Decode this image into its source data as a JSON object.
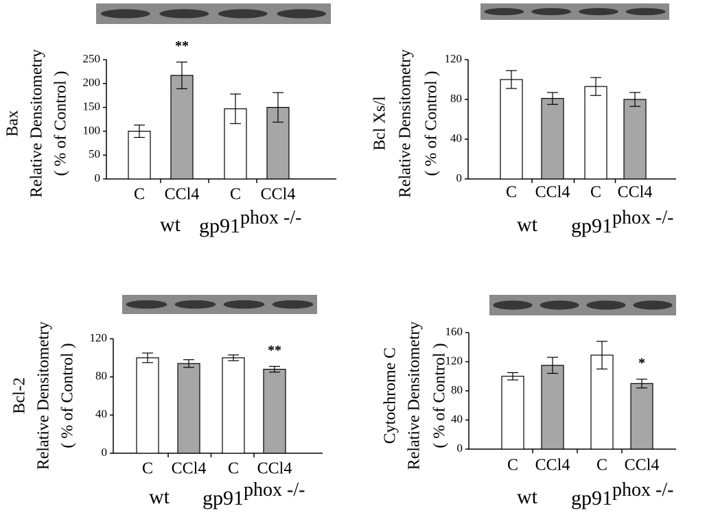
{
  "chart_data": [
    {
      "type": "bar",
      "ylabel": [
        "Bax",
        "Relative Densitometry",
        "( % of Control )"
      ],
      "categories": [
        "C",
        "CCl4",
        "C",
        "CCl4"
      ],
      "values": [
        100,
        217,
        147,
        150
      ],
      "errors": [
        13,
        28,
        31,
        31
      ],
      "colors": [
        "#ffffff",
        "#a6a6a6",
        "#ffffff",
        "#a6a6a6"
      ],
      "significance": [
        null,
        "**",
        null,
        null
      ],
      "group_labels": [
        "wt",
        {
          "base": "gp91",
          "sup": "phox -/-"
        }
      ],
      "ylim": [
        0,
        250
      ],
      "yticks": [
        0,
        50,
        100,
        150,
        200,
        250
      ]
    },
    {
      "type": "bar",
      "ylabel": [
        "Bcl Xs/l",
        "Relative Densitometry",
        "( % of Control )"
      ],
      "categories": [
        "C",
        "CCl4",
        "C",
        "CCl4"
      ],
      "values": [
        100,
        81,
        93,
        80
      ],
      "errors": [
        9,
        6,
        9,
        7
      ],
      "colors": [
        "#ffffff",
        "#a6a6a6",
        "#ffffff",
        "#a6a6a6"
      ],
      "significance": [
        null,
        null,
        null,
        null
      ],
      "group_labels": [
        "wt",
        {
          "base": "gp91",
          "sup": "phox -/-"
        }
      ],
      "ylim": [
        0,
        120
      ],
      "yticks": [
        0,
        40,
        80,
        120
      ]
    },
    {
      "type": "bar",
      "ylabel": [
        "Bcl-2",
        "Relative Densitometry",
        "( % of Control )"
      ],
      "categories": [
        "C",
        "CCl4",
        "C",
        "CCl4"
      ],
      "values": [
        100,
        94,
        100,
        88
      ],
      "errors": [
        5,
        4,
        3,
        3
      ],
      "colors": [
        "#ffffff",
        "#a6a6a6",
        "#ffffff",
        "#a6a6a6"
      ],
      "significance": [
        null,
        null,
        null,
        "**"
      ],
      "group_labels": [
        "wt",
        {
          "base": "gp91",
          "sup": "phox -/-"
        }
      ],
      "ylim": [
        0,
        120
      ],
      "yticks": [
        0,
        40,
        80,
        120
      ]
    },
    {
      "type": "bar",
      "ylabel": [
        "Cytochrome C",
        "Relative Densitometry",
        "( % of Control )"
      ],
      "categories": [
        "C",
        "CCl4",
        "C",
        "CCl4"
      ],
      "values": [
        100,
        115,
        129,
        90
      ],
      "errors": [
        5,
        11,
        19,
        6
      ],
      "colors": [
        "#ffffff",
        "#a6a6a6",
        "#ffffff",
        "#a6a6a6"
      ],
      "significance": [
        null,
        null,
        null,
        "*"
      ],
      "group_labels": [
        "wt",
        {
          "base": "gp91",
          "sup": "phox -/-"
        }
      ],
      "ylim": [
        0,
        160
      ],
      "yticks": [
        0,
        40,
        80,
        120,
        160
      ]
    }
  ]
}
